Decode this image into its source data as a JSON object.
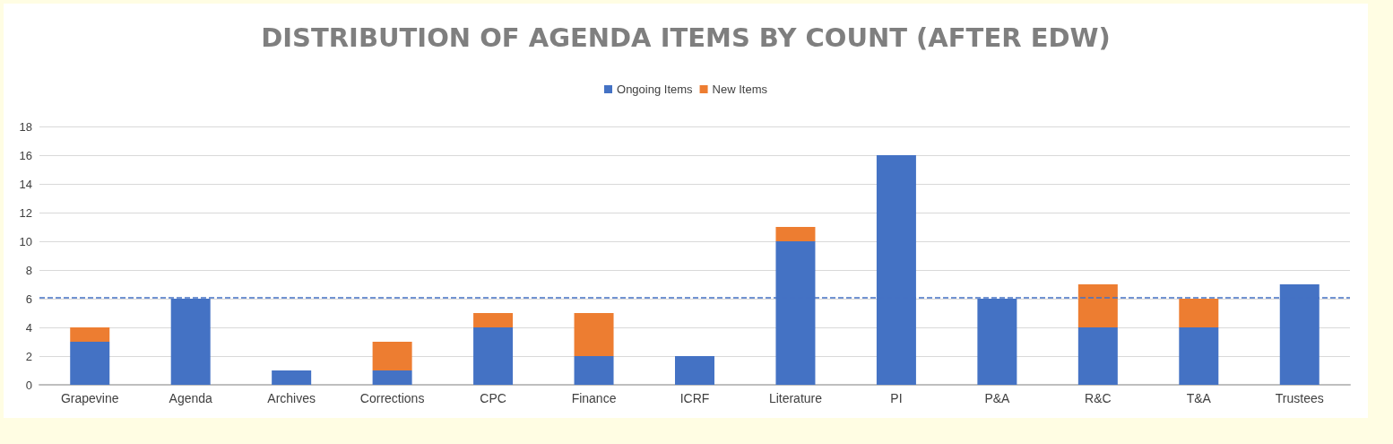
{
  "chart_data": {
    "type": "bar",
    "title": "DISTRIBUTION OF AGENDA ITEMS BY COUNT (AFTER EDW)",
    "categories": [
      "Grapevine",
      "Agenda",
      "Archives",
      "Corrections",
      "CPC",
      "Finance",
      "ICRF",
      "Literature",
      "PI",
      "P&A",
      "R&C",
      "T&A",
      "Trustees"
    ],
    "series": [
      {
        "name": "Ongoing Items",
        "color": "#4472c4",
        "values": [
          3,
          6,
          1,
          1,
          4,
          2,
          2,
          10,
          16,
          6,
          4,
          4,
          7
        ]
      },
      {
        "name": "New Items",
        "color": "#ed7d31",
        "values": [
          1,
          0,
          0,
          2,
          1,
          3,
          0,
          1,
          0,
          0,
          3,
          2,
          0
        ]
      }
    ],
    "stacked": true,
    "ylim": [
      0,
      18
    ],
    "yticks": [
      0,
      2,
      4,
      6,
      8,
      10,
      12,
      14,
      16,
      18
    ],
    "grid": "y",
    "legend": "top",
    "ref_lines": [
      {
        "axis": "y",
        "value": 6.1,
        "color": "#4472c4",
        "line_style": "dashed"
      }
    ]
  }
}
